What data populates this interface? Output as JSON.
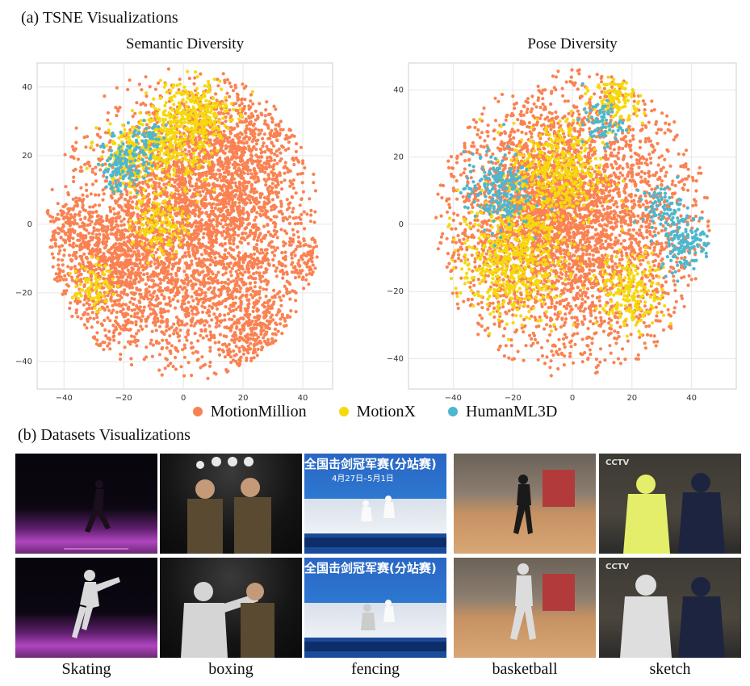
{
  "section_a": {
    "heading": "(a) TSNE Visualizations"
  },
  "section_b": {
    "heading": "(b) Datasets Visualizations"
  },
  "colors": {
    "motionmillion": "#FA8252",
    "motionx": "#F5D90C",
    "humanml3d": "#4CB7CE"
  },
  "legend": [
    "MotionMillion",
    "MotionX",
    "HumanML3D"
  ],
  "chart_data": [
    {
      "type": "scatter",
      "title": "Semantic Diversity",
      "xlabel": "",
      "ylabel": "",
      "xlim": [
        -49,
        50
      ],
      "ylim": [
        -48,
        47
      ],
      "xticks": [
        -40,
        -20,
        0,
        20,
        40
      ],
      "yticks": [
        40,
        20,
        0,
        -20,
        -40
      ],
      "grid": true,
      "series": [
        {
          "name": "MotionMillion",
          "clusters": [
            [
              0,
              -5,
              38
            ],
            [
              15,
              18,
              22
            ],
            [
              -25,
              -12,
              18
            ],
            [
              25,
              -30,
              12
            ],
            [
              -40,
              0,
              6
            ],
            [
              42,
              -10,
              6
            ]
          ]
        },
        {
          "name": "MotionX",
          "clusters": [
            [
              5,
              32,
              10
            ],
            [
              -5,
              25,
              12
            ],
            [
              -20,
              18,
              8
            ],
            [
              -30,
              -18,
              6
            ],
            [
              -8,
              0,
              8
            ]
          ]
        },
        {
          "name": "HumanML3D",
          "clusters": [
            [
              -18,
              20,
              7
            ],
            [
              -22,
              14,
              5
            ],
            [
              -10,
              26,
              4
            ]
          ]
        }
      ]
    },
    {
      "type": "scatter",
      "title": "Pose Diversity",
      "xlabel": "",
      "ylabel": "",
      "xlim": [
        -55,
        55
      ],
      "ylim": [
        -49,
        48
      ],
      "xticks": [
        -40,
        -20,
        0,
        20,
        40
      ],
      "yticks": [
        40,
        20,
        0,
        -20,
        -40
      ],
      "grid": true,
      "series": [
        {
          "name": "MotionMillion",
          "clusters": [
            [
              0,
              0,
              40
            ],
            [
              -10,
              5,
              20
            ]
          ]
        },
        {
          "name": "MotionX",
          "clusters": [
            [
              15,
              38,
              8
            ],
            [
              -20,
              -10,
              16
            ],
            [
              20,
              -20,
              10
            ],
            [
              -5,
              15,
              14
            ]
          ]
        },
        {
          "name": "HumanML3D",
          "clusters": [
            [
              38,
              -5,
              8
            ],
            [
              30,
              5,
              6
            ],
            [
              10,
              30,
              6
            ],
            [
              -25,
              10,
              10
            ]
          ]
        }
      ]
    }
  ],
  "examples": [
    {
      "caption": "Skating",
      "overlay_top": "",
      "overlay_sub": ""
    },
    {
      "caption": "boxing",
      "overlay_top": "",
      "overlay_sub": ""
    },
    {
      "caption": "fencing",
      "overlay_top": "全国击剑冠军赛(分站赛)",
      "overlay_sub": "4月27日–5月1日"
    },
    {
      "caption": "basketball",
      "overlay_top": "",
      "overlay_sub": ""
    },
    {
      "caption": "sketch",
      "overlay_top": "CCTV",
      "overlay_sub": ""
    }
  ]
}
